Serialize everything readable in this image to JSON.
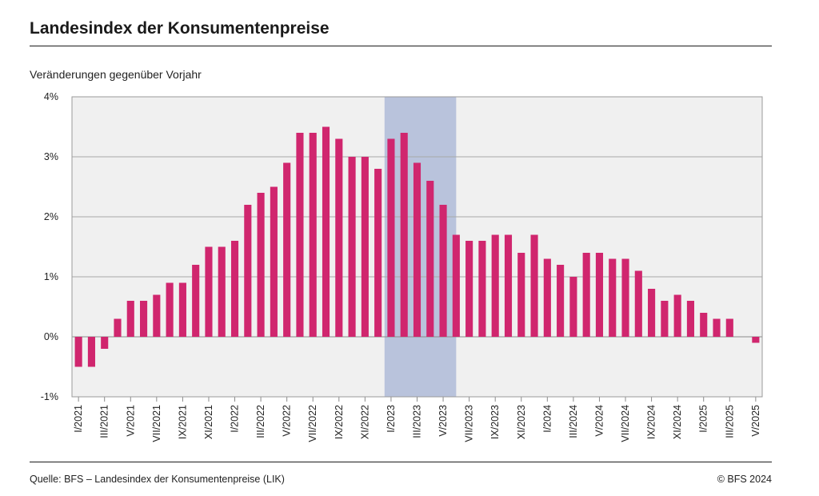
{
  "title": "Landesindex der Konsumentenpreise",
  "subtitle": "Veränderungen gegenüber Vorjahr",
  "source": "Quelle: BFS – Landesindex der Konsumentenpreise (LIK)",
  "copyright": "© BFS 2024",
  "colors": {
    "bar": "#d0266e",
    "plot_bg": "#f0f0f0",
    "highlight": "#b9c3dc",
    "grid": "#a8a8a8"
  },
  "chart_data": {
    "type": "bar",
    "ylim": [
      -1,
      4
    ],
    "yticks": [
      "4%",
      "3%",
      "2%",
      "1%",
      "0%",
      "-1%"
    ],
    "ytick_values": [
      4,
      3,
      2,
      1,
      0,
      -1
    ],
    "xtick_labels": [
      "I/2021",
      "III/2021",
      "V/2021",
      "VII/2021",
      "IX/2021",
      "XI/2021",
      "I/2022",
      "III/2022",
      "V/2022",
      "VII/2022",
      "IX/2022",
      "XI/2022",
      "I/2023",
      "III/2023",
      "V/2023",
      "VII/2023",
      "IX/2023",
      "XI/2023",
      "I/2024",
      "III/2024",
      "V/2024",
      "VII/2024",
      "IX/2024",
      "XI/2024",
      "I/2025",
      "III/2025",
      "V/2025"
    ],
    "highlight_range": [
      24,
      29.5
    ],
    "values": [
      -0.5,
      -0.5,
      -0.2,
      0.3,
      0.6,
      0.6,
      0.7,
      0.9,
      0.9,
      1.2,
      1.5,
      1.5,
      1.6,
      2.2,
      2.4,
      2.5,
      2.9,
      3.4,
      3.4,
      3.5,
      3.3,
      3.0,
      3.0,
      2.8,
      3.3,
      3.4,
      2.9,
      2.6,
      2.2,
      1.7,
      1.6,
      1.6,
      1.7,
      1.7,
      1.4,
      1.7,
      1.3,
      1.2,
      1.0,
      1.4,
      1.4,
      1.3,
      1.3,
      1.1,
      0.8,
      0.6,
      0.7,
      0.6,
      0.4,
      0.3,
      0.3,
      null,
      -0.1
    ],
    "grid": true,
    "legend": "none"
  }
}
